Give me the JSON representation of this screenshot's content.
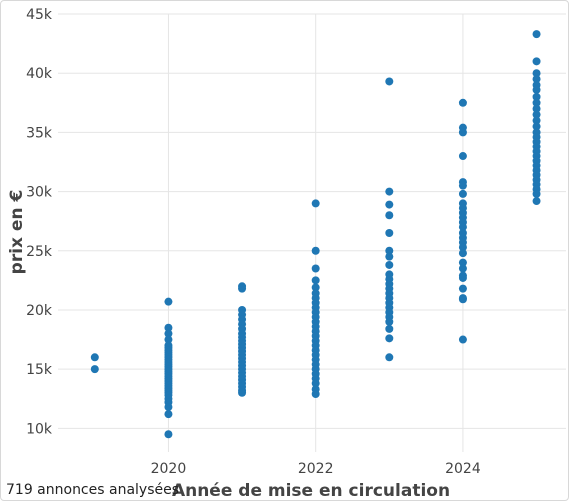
{
  "footer": {
    "count_note": "719 annonces analysées"
  },
  "colors": {
    "point": "#1f77b4",
    "grid": "#e5e5e5",
    "text": "#444444"
  },
  "chart_data": {
    "type": "scatter",
    "xlabel": "Année de mise en circulation",
    "ylabel": "prix en €",
    "xlim": [
      2018.5,
      2025.4
    ],
    "ylim": [
      8000,
      45000
    ],
    "x_ticks": [
      2020,
      2022,
      2024
    ],
    "x_tick_labels": [
      "2020",
      "2022",
      "2024"
    ],
    "y_ticks": [
      10000,
      15000,
      20000,
      25000,
      30000,
      35000,
      40000,
      45000
    ],
    "y_tick_labels": [
      "10k",
      "15k",
      "20k",
      "25k",
      "30k",
      "35k",
      "40k",
      "45k"
    ],
    "grid": true,
    "legend": "none",
    "series": [
      {
        "points_by_year": [
          {
            "x": 2019,
            "y": [
              16000,
              15000
            ]
          },
          {
            "x": 2020,
            "y": [
              20700,
              18500,
              18000,
              17500,
              17000,
              16800,
              16600,
              16400,
              16200,
              16000,
              15800,
              15600,
              15400,
              15200,
              15000,
              14800,
              14600,
              14400,
              14200,
              14000,
              13800,
              13600,
              13400,
              13200,
              13000,
              12800,
              12500,
              12200,
              11800,
              11200,
              9500
            ]
          },
          {
            "x": 2021,
            "y": [
              22000,
              21800,
              20000,
              19600,
              19200,
              18800,
              18400,
              18000,
              17700,
              17400,
              17100,
              16800,
              16500,
              16200,
              15900,
              15600,
              15300,
              15000,
              14700,
              14400,
              14100,
              13800,
              13500,
              13200,
              13000
            ]
          },
          {
            "x": 2022,
            "y": [
              29000,
              25000,
              23500,
              22500,
              21900,
              21400,
              21000,
              20600,
              20200,
              19800,
              19400,
              19000,
              18600,
              18200,
              17800,
              17400,
              17000,
              16600,
              16200,
              15800,
              15400,
              15000,
              14600,
              14200,
              13800,
              13300,
              12900
            ]
          },
          {
            "x": 2023,
            "y": [
              39300,
              30000,
              28900,
              28000,
              26500,
              25000,
              24500,
              23800,
              23000,
              22600,
              22200,
              21800,
              21400,
              21000,
              20600,
              20200,
              19800,
              19400,
              19000,
              18400,
              17600,
              16000
            ]
          },
          {
            "x": 2024,
            "y": [
              37500,
              35400,
              35000,
              33000,
              30800,
              30500,
              29800,
              29000,
              28600,
              28200,
              27800,
              27400,
              27000,
              26500,
              26100,
              25700,
              25300,
              24800,
              24000,
              23500,
              22900,
              22700,
              21800,
              21000,
              20900,
              17500
            ]
          },
          {
            "x": 2025,
            "y": [
              43300,
              41000,
              40000,
              39500,
              39000,
              38600,
              38000,
              37500,
              37000,
              36500,
              36000,
              35500,
              35000,
              34600,
              34200,
              33800,
              33400,
              33000,
              32600,
              32200,
              31800,
              31400,
              31000,
              30600,
              30200,
              29800,
              29200
            ]
          }
        ]
      }
    ]
  }
}
